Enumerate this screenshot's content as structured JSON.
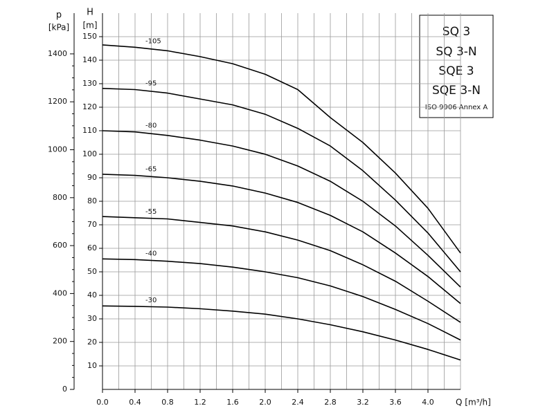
{
  "chart_data": {
    "type": "line",
    "y_label": "H",
    "y_unit": "[m]",
    "y2_label": "p",
    "y2_unit": "[kPa]",
    "x_label": "Q [m³/h]",
    "annotations": [
      "SQ 3",
      "SQ 3-N",
      "SQE 3",
      "SQE 3-N",
      "ISO 9906 Annex A"
    ],
    "x": [
      0,
      0.4,
      0.8,
      1.2,
      1.6,
      2.0,
      2.4,
      2.8,
      3.2,
      3.6,
      4.0,
      4.4
    ],
    "xlim": [
      0,
      4.4
    ],
    "xticks": [
      {
        "value": 0,
        "label": "0.0"
      },
      0.4,
      0.8,
      1.2,
      1.6,
      {
        "value": 2,
        "label": "2.0"
      },
      2.4,
      2.8,
      3.2,
      3.6,
      {
        "value": 4,
        "label": "4.0"
      }
    ],
    "ylim": [
      0,
      160
    ],
    "yticks": [
      10,
      20,
      30,
      40,
      50,
      60,
      70,
      80,
      90,
      100,
      110,
      120,
      130,
      140,
      150
    ],
    "y2lim": [
      0,
      1570
    ],
    "y2ticks": [
      0,
      200,
      400,
      600,
      800,
      1000,
      1200,
      1400
    ],
    "grid": true,
    "series": [
      {
        "name": "-105",
        "color": "#000000",
        "values": [
          146.5,
          145.5,
          144,
          141.5,
          138.5,
          134,
          127.5,
          115.6,
          105,
          92,
          77,
          58
        ]
      },
      {
        "name": "-95",
        "color": "#000000",
        "values": [
          128,
          127.5,
          126,
          123.5,
          121,
          117,
          111,
          103.5,
          93,
          80.5,
          66.5,
          50
        ]
      },
      {
        "name": "-80",
        "color": "#000000",
        "values": [
          110,
          109.5,
          108,
          106,
          103.5,
          100,
          95,
          88.5,
          80,
          69.5,
          57,
          43.5
        ]
      },
      {
        "name": "-65",
        "color": "#000000",
        "values": [
          91.5,
          91,
          90,
          88.5,
          86.5,
          83.5,
          79.5,
          74,
          67,
          58,
          48,
          36.5
        ]
      },
      {
        "name": "-55",
        "color": "#000000",
        "values": [
          73.5,
          73,
          72.5,
          71,
          69.5,
          67,
          63.5,
          59,
          53,
          46,
          37.5,
          28.5
        ]
      },
      {
        "name": "-40",
        "color": "#000000",
        "values": [
          55.5,
          55.2,
          54.5,
          53.5,
          52,
          50,
          47.5,
          44,
          39.5,
          34,
          28,
          21
        ]
      },
      {
        "name": "-30",
        "color": "#000000",
        "values": [
          35.5,
          35.3,
          35,
          34.3,
          33.3,
          32,
          30,
          27.5,
          24.5,
          21,
          17,
          12.5
        ]
      }
    ]
  }
}
